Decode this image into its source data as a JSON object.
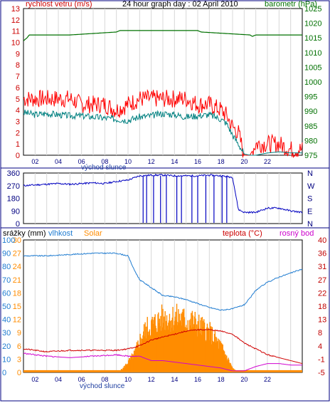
{
  "panel1": {
    "title": "24 hour graph day : 02 April 2010",
    "left_label": "rychlost vetru (m/s)",
    "right_label": "barometr (hPa)",
    "left_ticks": [
      "0",
      "1",
      "2",
      "3",
      "4",
      "5",
      "6",
      "7",
      "8",
      "9",
      "10",
      "11",
      "12",
      "13"
    ],
    "right_ticks": [
      "975",
      "980",
      "985",
      "990",
      "995",
      "1000",
      "1005",
      "1010",
      "1015",
      "1020",
      "1025"
    ],
    "x_ticks": [
      "02",
      "04",
      "06",
      "08",
      "10",
      "12",
      "14",
      "16",
      "18",
      "20",
      "22"
    ],
    "sunrise_label": "východ slunce"
  },
  "panel2": {
    "left_ticks": [
      "0",
      "90",
      "180",
      "270",
      "360"
    ],
    "right_ticks": [
      "N",
      "E",
      "S",
      "W",
      "N"
    ]
  },
  "panel3": {
    "label_rain": "srážky (mm)",
    "label_humidity": "vlhkost",
    "label_solar": "Solar",
    "label_temp": "teplota (°C)",
    "label_dew": "rosný bod",
    "rain_ticks": [
      "0",
      "3",
      "6",
      "9",
      "12",
      "15",
      "18",
      "21",
      "24",
      "27",
      "30"
    ],
    "humidity_ticks": [
      "0",
      "10",
      "20",
      "30",
      "40",
      "50",
      "60",
      "70",
      "80",
      "90",
      "100"
    ],
    "temp_ticks": [
      "-5",
      "-1",
      "4",
      "8",
      "13",
      "18",
      "22",
      "27",
      "31",
      "36",
      "40"
    ],
    "x_ticks": [
      "02",
      "04",
      "06",
      "08",
      "10",
      "12",
      "14",
      "16",
      "18",
      "20",
      "22"
    ],
    "sunrise_label": "východ slunce"
  },
  "colors": {
    "wind": "#ff0000",
    "gust_avg": "#008080",
    "pressure": "#007000",
    "direction": "#0000c0",
    "humidity": "#1e7bd0",
    "solar": "#ff8c00",
    "temperature": "#d00000",
    "dew_point": "#d000d0",
    "rain_axis": "#ff8c00",
    "humidity_axis": "#1e7bd0",
    "temp_axis": "#c00000"
  },
  "chart_data": [
    {
      "type": "line",
      "x_unit": "hour",
      "series": [
        {
          "key": "wind_max",
          "x": [
            0,
            1,
            2,
            3,
            4,
            5,
            6,
            7,
            8,
            9,
            10,
            11,
            12,
            13,
            14,
            15,
            16,
            17,
            17.5,
            18,
            18.5,
            19,
            19.5,
            20,
            20.5,
            21,
            22,
            23,
            24
          ],
          "values": [
            5,
            5,
            5,
            5,
            5,
            4.5,
            4.5,
            4.5,
            4,
            4.5,
            5,
            5,
            5,
            5,
            5,
            4.5,
            4.5,
            4,
            3.5,
            2.5,
            2,
            0,
            0,
            1,
            1,
            1,
            1,
            0.5,
            0.5
          ]
        },
        {
          "key": "wind_avg",
          "x": [
            0,
            1,
            2,
            3,
            4,
            5,
            6,
            7,
            8,
            9,
            10,
            11,
            12,
            13,
            14,
            15,
            16,
            17,
            17.5,
            18,
            18.5,
            19,
            19.5,
            20,
            21,
            22,
            23,
            24
          ],
          "values": [
            3.8,
            3.6,
            3.7,
            3.6,
            3.5,
            3.5,
            3.4,
            3.3,
            3.2,
            3.1,
            3.4,
            3.5,
            3.7,
            3.6,
            3.4,
            3.5,
            3.6,
            3.2,
            2.8,
            1.8,
            1.0,
            0.1,
            0,
            0,
            0.2,
            0.3,
            0.2,
            0.2
          ]
        },
        {
          "key": "pressure",
          "x": [
            0,
            0.3,
            0.5,
            1,
            4,
            8,
            8.3,
            15,
            15.3,
            19.5,
            19.7,
            20,
            24
          ],
          "values": [
            1014,
            1015,
            1016,
            1016,
            1016,
            1017,
            1017.5,
            1017.5,
            1017,
            1016,
            1015.5,
            1016,
            1016
          ]
        }
      ],
      "ylim": [
        0,
        13
      ],
      "y2lim": [
        975,
        1025
      ]
    },
    {
      "type": "line",
      "x_unit": "hour",
      "series": [
        {
          "key": "wind_direction",
          "x": [
            0,
            1,
            2,
            3,
            4,
            5,
            6,
            7,
            8,
            9,
            10,
            11,
            12,
            13,
            14,
            15,
            16,
            17,
            18,
            18.5,
            19,
            20,
            21,
            22,
            23,
            24
          ],
          "values": [
            270,
            275,
            280,
            285,
            280,
            285,
            290,
            285,
            300,
            310,
            340,
            345,
            345,
            340,
            340,
            340,
            345,
            340,
            330,
            100,
            80,
            80,
            110,
            110,
            90,
            80
          ]
        }
      ],
      "ylim": [
        0,
        360
      ]
    },
    {
      "type": "area",
      "x_unit": "hour",
      "series": [
        {
          "key": "humidity",
          "x": [
            0,
            2,
            4,
            6,
            8,
            9,
            9.5,
            10,
            11,
            12,
            13,
            14,
            15,
            16,
            17,
            18,
            19,
            19.5,
            20,
            21,
            22,
            23,
            24
          ],
          "values": [
            88,
            88,
            89,
            90,
            90,
            88,
            78,
            70,
            64,
            58,
            57,
            55,
            52,
            49,
            47,
            48,
            51,
            56,
            62,
            68,
            72,
            75,
            78
          ]
        },
        {
          "key": "solar",
          "x": [
            0,
            8,
            8.5,
            9,
            9.5,
            10,
            10.5,
            11,
            11.5,
            12,
            12.5,
            13,
            13.5,
            14,
            14.5,
            15,
            15.5,
            16,
            16.5,
            17,
            17.5,
            18,
            18.5,
            24
          ],
          "values": [
            0,
            0,
            1,
            3,
            5,
            9,
            12,
            13,
            14,
            15,
            15,
            15,
            15,
            14,
            14,
            13,
            12,
            11,
            9,
            7,
            4,
            1,
            0,
            0
          ]
        },
        {
          "key": "temperature",
          "x": [
            0,
            2,
            4,
            6,
            8,
            9,
            10,
            11,
            12,
            13,
            14,
            15,
            16,
            17,
            18,
            19,
            20,
            21,
            22,
            23,
            24
          ],
          "values": [
            3,
            2,
            2.5,
            2.5,
            2.5,
            3,
            4,
            6,
            7,
            8,
            9,
            9.5,
            9.5,
            9,
            8,
            5,
            3,
            1,
            0,
            -1,
            -2
          ]
        },
        {
          "key": "dew_point",
          "x": [
            0,
            2,
            4,
            6,
            8,
            9,
            10,
            11,
            12,
            13,
            14,
            15,
            16,
            17,
            18,
            19,
            20,
            21,
            22,
            23,
            24
          ],
          "values": [
            1.5,
            0.5,
            0,
            0.5,
            1,
            0.5,
            0.5,
            -1,
            -1,
            -1.5,
            -2,
            -2.5,
            -3,
            -3.5,
            -4.5,
            -4.5,
            -3,
            -2,
            -2,
            -2.5,
            -2.5
          ]
        }
      ],
      "ylim": [
        0,
        30
      ],
      "y2lim": [
        -5,
        40
      ]
    }
  ]
}
